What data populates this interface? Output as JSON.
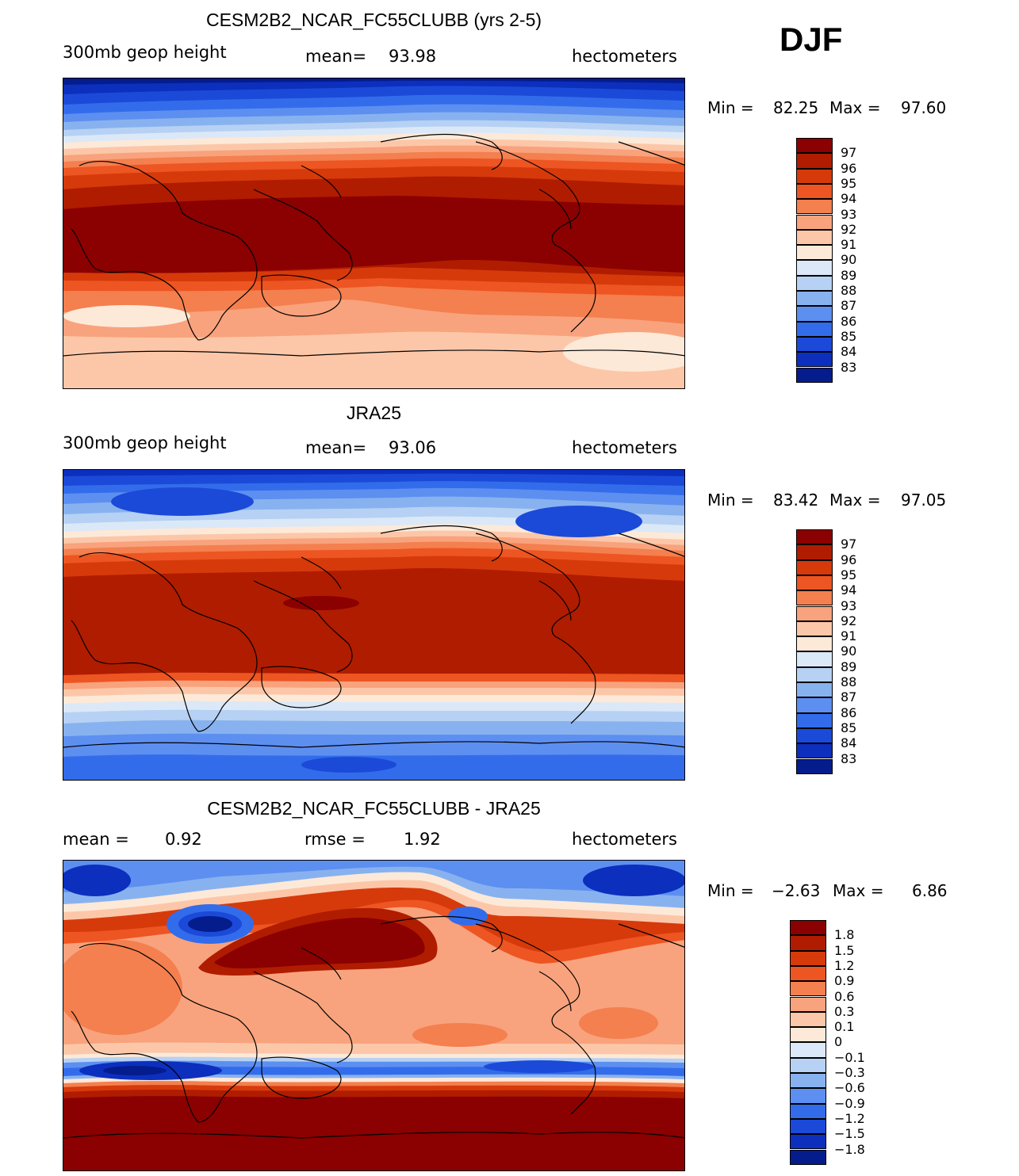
{
  "season": "DJF",
  "units": "hectometers",
  "panels": [
    {
      "title": "CESM2B2_NCAR_FC55CLUBB (yrs 2-5)",
      "left_label": "300mb  geop  height",
      "stat_label": "mean=",
      "stat_value": "93.98",
      "units": "hectometers",
      "min_label": "Min =",
      "min_value": "82.25",
      "max_label": "Max =",
      "max_value": "97.60",
      "colorbar_labels": [
        "97",
        "96",
        "95",
        "94",
        "93",
        "92",
        "91",
        "90",
        "89",
        "88",
        "87",
        "86",
        "85",
        "84",
        "83"
      ],
      "colorbar_colors": [
        "#8b0000",
        "#b01c00",
        "#d63a0b",
        "#ed5522",
        "#f47f4f",
        "#f8a37d",
        "#fcc7a8",
        "#fde9d8",
        "#dbe8f7",
        "#b6d1f3",
        "#88b2ef",
        "#5d8ff0",
        "#336ceb",
        "#1b4ad8",
        "#0c2fbe",
        "#051c8c"
      ],
      "chart_data": {
        "type": "filled-contour-map",
        "variable": "300mb geop height",
        "mean": 93.98,
        "min": 82.25,
        "max": 97.6,
        "levels": [
          83,
          84,
          85,
          86,
          87,
          88,
          89,
          90,
          91,
          92,
          93,
          94,
          95,
          96,
          97
        ]
      }
    },
    {
      "title": "JRA25",
      "left_label": "300mb  geop  height",
      "stat_label": "mean=",
      "stat_value": "93.06",
      "units": "hectometers",
      "min_label": "Min =",
      "min_value": "83.42",
      "max_label": "Max =",
      "max_value": "97.05",
      "colorbar_labels": [
        "97",
        "96",
        "95",
        "94",
        "93",
        "92",
        "91",
        "90",
        "89",
        "88",
        "87",
        "86",
        "85",
        "84",
        "83"
      ],
      "colorbar_colors": [
        "#8b0000",
        "#b01c00",
        "#d63a0b",
        "#ed5522",
        "#f47f4f",
        "#f8a37d",
        "#fcc7a8",
        "#fde9d8",
        "#dbe8f7",
        "#b6d1f3",
        "#88b2ef",
        "#5d8ff0",
        "#336ceb",
        "#1b4ad8",
        "#0c2fbe",
        "#051c8c"
      ],
      "chart_data": {
        "type": "filled-contour-map",
        "variable": "300mb geop height",
        "mean": 93.06,
        "min": 83.42,
        "max": 97.05,
        "levels": [
          83,
          84,
          85,
          86,
          87,
          88,
          89,
          90,
          91,
          92,
          93,
          94,
          95,
          96,
          97
        ]
      }
    },
    {
      "title": "CESM2B2_NCAR_FC55CLUBB - JRA25",
      "left_label": "mean =",
      "left_value": "0.92",
      "stat_label": "rmse =",
      "stat_value": "1.92",
      "units": "hectometers",
      "min_label": "Min =",
      "min_value": "−2.63",
      "max_label": "Max =",
      "max_value": "6.86",
      "colorbar_labels": [
        "1.8",
        "1.5",
        "1.2",
        "0.9",
        "0.6",
        "0.3",
        "0.1",
        "0",
        "−0.1",
        "−0.3",
        "−0.6",
        "−0.9",
        "−1.2",
        "−1.5",
        "−1.8"
      ],
      "colorbar_colors": [
        "#8b0000",
        "#b01c00",
        "#d63a0b",
        "#ed5522",
        "#f47f4f",
        "#f8a37d",
        "#fcc7a8",
        "#fde9d8",
        "#dbe8f7",
        "#b6d1f3",
        "#88b2ef",
        "#5d8ff0",
        "#336ceb",
        "#1b4ad8",
        "#0c2fbe",
        "#051c8c"
      ],
      "chart_data": {
        "type": "filled-contour-map",
        "variable": "300mb geop height difference",
        "mean": 0.92,
        "rmse": 1.92,
        "min": -2.63,
        "max": 6.86,
        "levels": [
          -1.8,
          -1.5,
          -1.2,
          -0.9,
          -0.6,
          -0.3,
          -0.1,
          0,
          0.1,
          0.3,
          0.6,
          0.9,
          1.2,
          1.5,
          1.8
        ]
      }
    }
  ]
}
